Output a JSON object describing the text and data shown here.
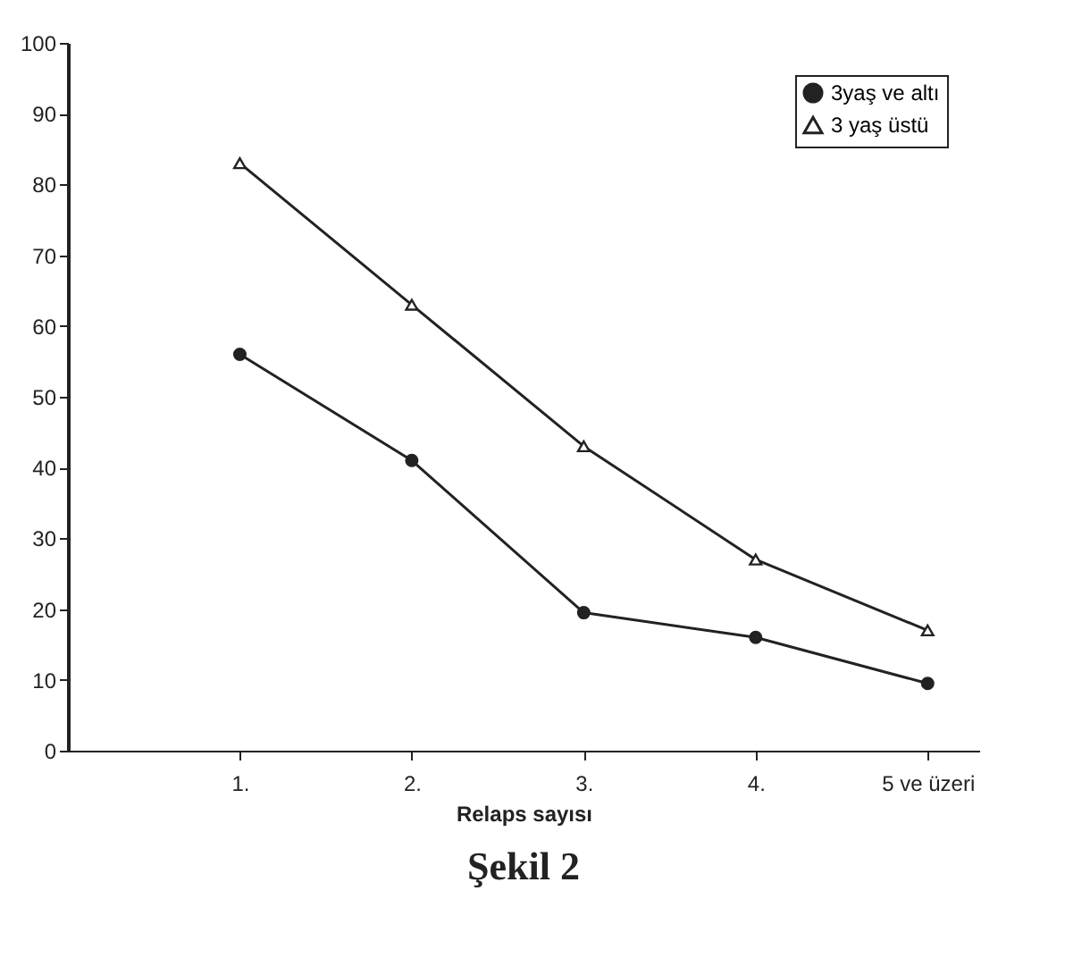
{
  "chart_data": {
    "type": "line",
    "title": "Şekil 2",
    "xlabel": "Relaps sayısı",
    "categories": [
      "1.",
      "2.",
      "3.",
      "4.",
      "5 ve üzeri"
    ],
    "series": [
      {
        "name": "3yaş ve altı",
        "color": "#222222",
        "marker": "circle",
        "values": [
          56,
          41,
          19.5,
          16,
          9.5
        ]
      },
      {
        "name": "3 yaş üstü",
        "color": "#222222",
        "marker": "triangle",
        "values": [
          83,
          63,
          43,
          27,
          17
        ]
      }
    ],
    "ylim": [
      0,
      100
    ],
    "yticks": [
      0,
      10,
      20,
      30,
      40,
      50,
      60,
      70,
      80,
      90,
      100
    ],
    "legend": "top right",
    "grid": false,
    "line_style": "solid"
  }
}
